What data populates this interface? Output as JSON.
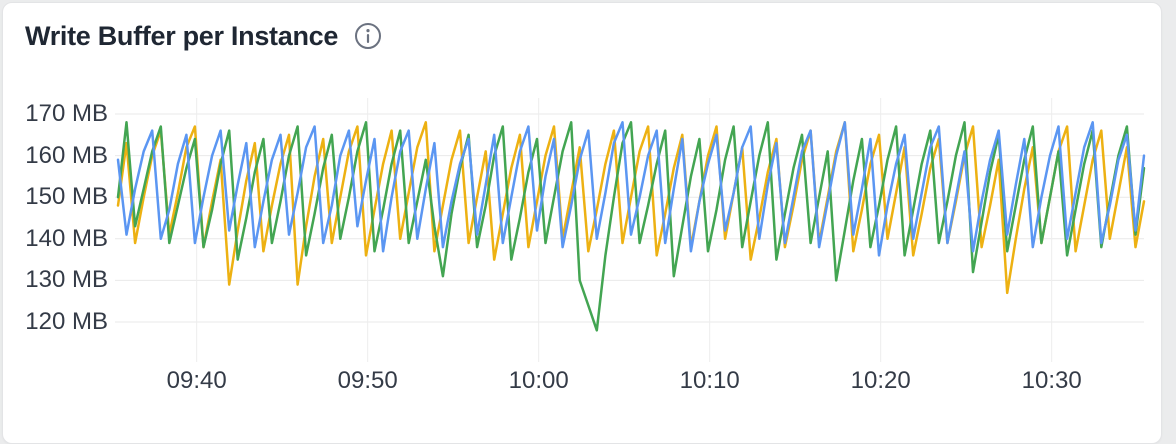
{
  "panel": {
    "title": "Write Buffer per Instance",
    "info_icon": "info-icon"
  },
  "colors": {
    "background_outside": "#ebeced",
    "panel_background": "#ffffff",
    "panel_border": "#e3e4e6",
    "grid_horizontal": "#e9e9e9",
    "grid_vertical": "#ededed",
    "title_text": "#1f2733",
    "axis_text": "#343b47",
    "info_icon": "#6b7280"
  },
  "chart_data": {
    "type": "line",
    "title": "Write Buffer per Instance",
    "unit": "MB",
    "legend": "none",
    "grid": true,
    "x_axis": {
      "labels": [
        "09:40",
        "09:50",
        "10:00",
        "10:10",
        "10:20",
        "10:30"
      ],
      "tick_minutes": [
        4.6,
        14.6,
        24.6,
        34.6,
        44.6,
        54.6
      ],
      "span_minutes": 60,
      "sample_step_minutes": 0.5
    },
    "y_axis": {
      "tick_labels": [
        "170 MB",
        "160 MB",
        "150 MB",
        "140 MB",
        "130 MB",
        "120 MB"
      ],
      "ticks": [
        170,
        160,
        150,
        140,
        130,
        120
      ],
      "unit": "MB",
      "approx_range": [
        115,
        170
      ]
    },
    "series": [
      {
        "name": "series-yellow",
        "color": "#edb112",
        "values": [
          148,
          163,
          139,
          150,
          160,
          166,
          141,
          151,
          162,
          167,
          138,
          149,
          159,
          129,
          142,
          154,
          163,
          137,
          148,
          158,
          165,
          129,
          143,
          155,
          164,
          139,
          150,
          161,
          167,
          136,
          147,
          158,
          166,
          140,
          151,
          162,
          168,
          137,
          148,
          159,
          166,
          139,
          150,
          161,
          135,
          146,
          157,
          165,
          138,
          149,
          160,
          167,
          140,
          151,
          162,
          137,
          147,
          158,
          166,
          139,
          150,
          161,
          167,
          136,
          146,
          157,
          165,
          138,
          149,
          160,
          167,
          140,
          151,
          162,
          135,
          145,
          156,
          164,
          138,
          148,
          159,
          166,
          139,
          150,
          161,
          168,
          137,
          147,
          158,
          165,
          140,
          151,
          162,
          136,
          146,
          157,
          164,
          139,
          149,
          160,
          167,
          138,
          148,
          159,
          127,
          140,
          152,
          162,
          139,
          150,
          161,
          167,
          137,
          148,
          159,
          166,
          140,
          151,
          162,
          138,
          149
        ]
      },
      {
        "name": "series-green",
        "color": "#43a552",
        "values": [
          150,
          168,
          143,
          152,
          161,
          167,
          139,
          148,
          157,
          164,
          138,
          147,
          158,
          166,
          135,
          145,
          156,
          164,
          139,
          149,
          160,
          167,
          136,
          146,
          157,
          165,
          140,
          150,
          161,
          168,
          137,
          147,
          158,
          166,
          139,
          149,
          159,
          143,
          131,
          146,
          157,
          165,
          138,
          148,
          160,
          167,
          135,
          145,
          156,
          164,
          139,
          150,
          161,
          168,
          130,
          124,
          118,
          136,
          150,
          163,
          168,
          139,
          148,
          158,
          166,
          131,
          143,
          155,
          164,
          137,
          147,
          159,
          167,
          138,
          149,
          160,
          168,
          135,
          146,
          157,
          165,
          139,
          150,
          161,
          130,
          142,
          154,
          164,
          138,
          148,
          159,
          167,
          136,
          147,
          158,
          166,
          139,
          149,
          160,
          168,
          132,
          144,
          156,
          165,
          137,
          148,
          159,
          167,
          139,
          150,
          161,
          136,
          147,
          158,
          166,
          138,
          149,
          160,
          167,
          141,
          157
        ]
      },
      {
        "name": "series-blue",
        "color": "#5b96f2",
        "values": [
          159,
          141,
          152,
          161,
          166,
          140,
          147,
          158,
          165,
          139,
          150,
          160,
          166,
          142,
          153,
          163,
          138,
          149,
          159,
          165,
          141,
          151,
          162,
          167,
          139,
          148,
          160,
          166,
          143,
          154,
          164,
          137,
          150,
          161,
          166,
          140,
          152,
          163,
          138,
          149,
          158,
          164,
          141,
          153,
          165,
          139,
          150,
          161,
          167,
          142,
          155,
          164,
          138,
          148,
          159,
          166,
          140,
          151,
          163,
          168,
          141,
          150,
          160,
          166,
          139,
          152,
          164,
          137,
          149,
          158,
          165,
          142,
          151,
          162,
          167,
          140,
          153,
          163,
          139,
          150,
          161,
          166,
          138,
          149,
          160,
          168,
          141,
          152,
          164,
          136,
          148,
          158,
          165,
          140,
          151,
          162,
          167,
          139,
          150,
          161,
          137,
          149,
          159,
          166,
          141,
          153,
          164,
          138,
          150,
          160,
          167,
          140,
          151,
          162,
          168,
          139,
          148,
          159,
          165,
          142,
          160
        ]
      }
    ]
  }
}
